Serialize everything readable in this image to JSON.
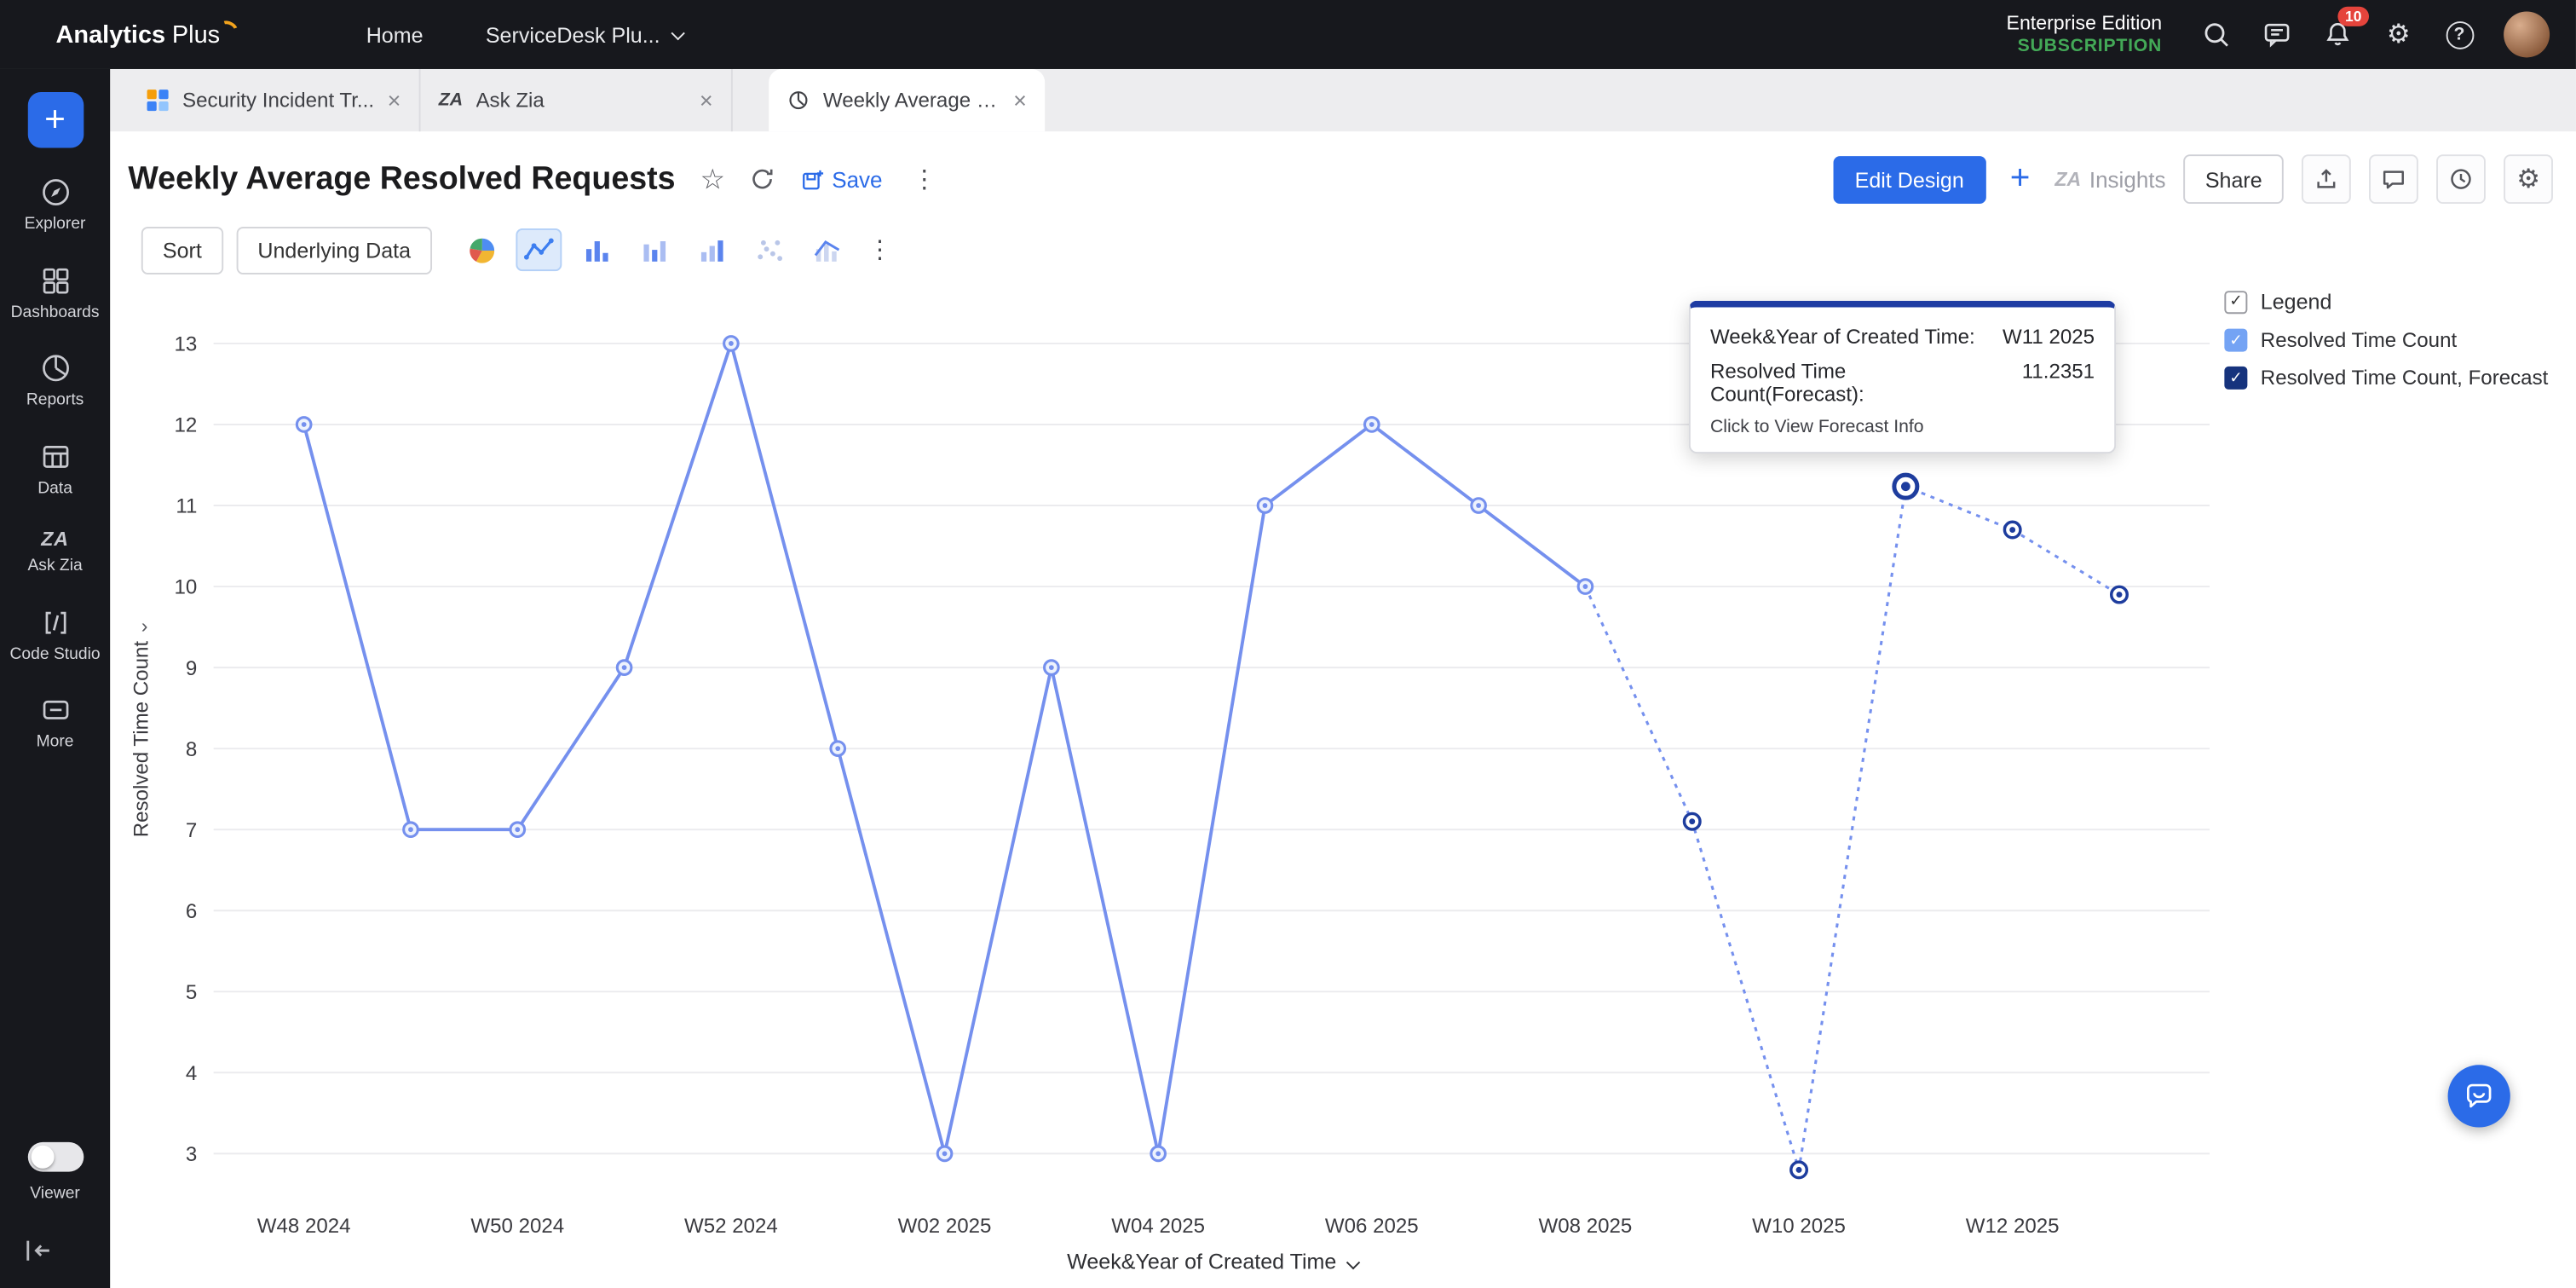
{
  "icons": {
    "check": "✓",
    "kebab": "⋮",
    "star": "☆",
    "gear": "⚙",
    "close": "×",
    "plus": "+",
    "help": "?",
    "chevron": "›"
  },
  "topbar": {
    "logo_part1": "Analytics",
    "logo_part2": "Plus",
    "nav": [
      {
        "label": "Home"
      },
      {
        "label": "ServiceDesk Plu..."
      }
    ],
    "edition": "Enterprise Edition",
    "subscription": "SUBSCRIPTION",
    "notification_count": "10"
  },
  "sidebar": {
    "items": [
      {
        "label": "Explorer"
      },
      {
        "label": "Dashboards"
      },
      {
        "label": "Reports"
      },
      {
        "label": "Data"
      },
      {
        "label": "Ask Zia"
      },
      {
        "label": "Code Studio"
      },
      {
        "label": "More"
      }
    ],
    "viewer_label": "Viewer"
  },
  "tabs": [
    {
      "label": "Security Incident Tr..."
    },
    {
      "label": "Ask Zia"
    },
    {
      "label": "Weekly Average Res..."
    }
  ],
  "header": {
    "title": "Weekly Average Resolved Requests",
    "save_label": "Save",
    "edit_design_label": "Edit Design",
    "insights_label": "Insights",
    "share_label": "Share"
  },
  "toolbar": {
    "sort_label": "Sort",
    "underlying_data_label": "Underlying Data"
  },
  "tooltip": {
    "dim_label": "Week&Year of Created Time:",
    "dim_value": "W11 2025",
    "measure_label": "Resolved Time Count(Forecast):",
    "measure_value": "11.2351",
    "footer": "Click to View Forecast Info"
  },
  "legend": {
    "title": "Legend",
    "items": [
      {
        "label": "Resolved Time Count",
        "color": "#74a3f4"
      },
      {
        "label": "Resolved Time Count, Forecast",
        "color": "#16337d"
      }
    ]
  },
  "chart_data": {
    "type": "line",
    "title": "Weekly Average Resolved Requests",
    "xlabel": "Week&Year of Created Time",
    "ylabel": "Resolved Time Count",
    "ylim": [
      3,
      13
    ],
    "y_ticks": [
      3,
      4,
      5,
      6,
      7,
      8,
      9,
      10,
      11,
      12,
      13
    ],
    "grid": "horizontal",
    "legend_position": "top-right",
    "categories": [
      "W48 2024",
      "W49 2024",
      "W50 2024",
      "W51 2024",
      "W52 2024",
      "W01 2025",
      "W02 2025",
      "W03 2025",
      "W04 2025",
      "W05 2025",
      "W06 2025",
      "W07 2025",
      "W08 2025",
      "W09 2025",
      "W10 2025",
      "W11 2025",
      "W12 2025",
      "W13 2025"
    ],
    "x_tick_labels": [
      "W48 2024",
      "W50 2024",
      "W52 2024",
      "W02 2025",
      "W04 2025",
      "W06 2025",
      "W08 2025",
      "W10 2025",
      "W12 2025"
    ],
    "series": [
      {
        "name": "Resolved Time Count",
        "style": "solid",
        "color": "#7590ee",
        "values": [
          12,
          7,
          7,
          9,
          13,
          8,
          3,
          9,
          3,
          11,
          12,
          11,
          10,
          null,
          null,
          null,
          null,
          null
        ]
      },
      {
        "name": "Resolved Time Count, Forecast",
        "style": "dashed",
        "color": "#7590ee",
        "marker_color": "#1e3d9e",
        "values": [
          null,
          null,
          null,
          null,
          null,
          null,
          null,
          null,
          null,
          null,
          null,
          null,
          10,
          7.1,
          2.8,
          11.2351,
          10.7,
          9.9
        ]
      }
    ],
    "highlight": {
      "series": 1,
      "index": 15,
      "category": "W11 2025",
      "value": 11.2351
    }
  }
}
